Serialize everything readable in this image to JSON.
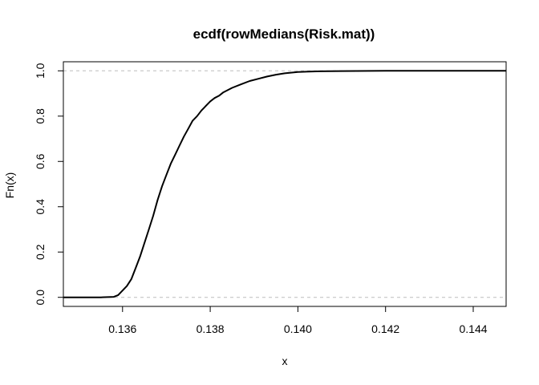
{
  "chart_data": {
    "type": "line",
    "title": "ecdf(rowMedians(Risk.mat))",
    "xlabel": "x",
    "ylabel": "Fn(x)",
    "xlim": [
      0.13465,
      0.14475
    ],
    "ylim": [
      -0.04,
      1.04
    ],
    "x_ticks": [
      "0.136",
      "0.138",
      "0.140",
      "0.142",
      "0.144"
    ],
    "y_ticks": [
      "0.0",
      "0.2",
      "0.4",
      "0.6",
      "0.8",
      "1.0"
    ],
    "reference_lines": [
      0,
      1
    ],
    "grid": false,
    "series": [
      {
        "x": [
          0.13465,
          0.1355,
          0.1358,
          0.1359,
          0.136,
          0.1361,
          0.1362,
          0.1363,
          0.1364,
          0.1365,
          0.1366,
          0.1367,
          0.1368,
          0.1369,
          0.137,
          0.1371,
          0.1372,
          0.1373,
          0.1374,
          0.1375,
          0.1376,
          0.1377,
          0.1378,
          0.1379,
          0.138,
          0.1381,
          0.1382,
          0.1383,
          0.1385,
          0.1387,
          0.1389,
          0.1391,
          0.1393,
          0.1395,
          0.1397,
          0.14,
          0.1405,
          0.141,
          0.142,
          0.14475
        ],
        "y": [
          0.0,
          0.0,
          0.002,
          0.01,
          0.03,
          0.05,
          0.08,
          0.13,
          0.18,
          0.24,
          0.3,
          0.36,
          0.43,
          0.49,
          0.54,
          0.59,
          0.63,
          0.67,
          0.71,
          0.745,
          0.78,
          0.8,
          0.825,
          0.845,
          0.865,
          0.88,
          0.89,
          0.905,
          0.925,
          0.94,
          0.955,
          0.965,
          0.975,
          0.983,
          0.989,
          0.995,
          0.998,
          0.999,
          1.0,
          1.0
        ]
      }
    ]
  }
}
